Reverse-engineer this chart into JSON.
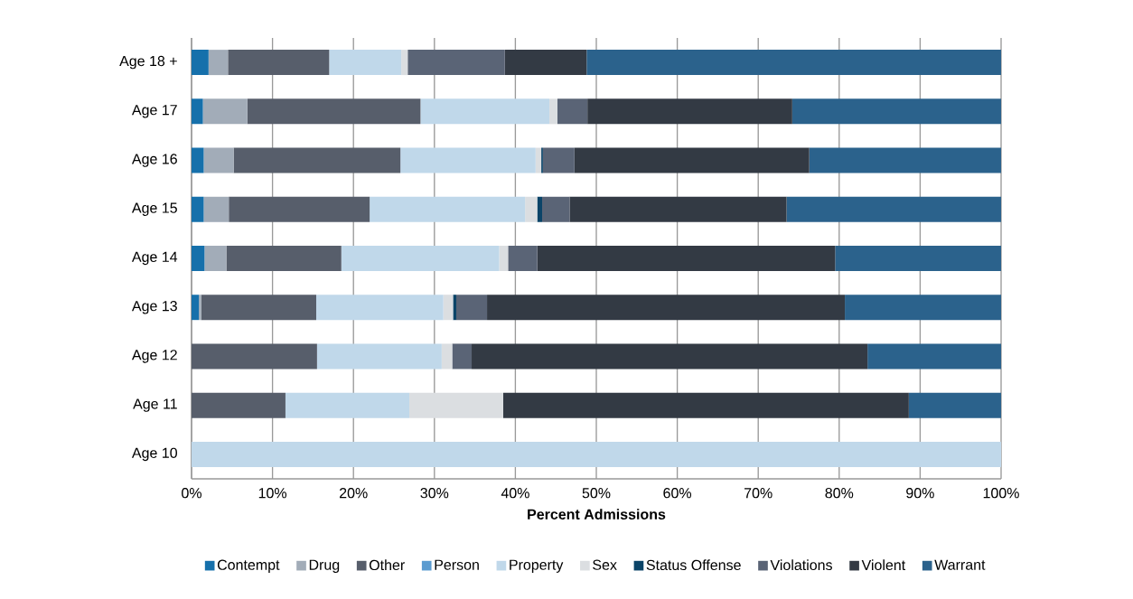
{
  "chart_data": {
    "type": "bar",
    "orientation": "horizontal",
    "stacked": true,
    "xlabel": "Percent Admissions",
    "categories": [
      "Age 18 +",
      "Age 17",
      "Age 16",
      "Age 15",
      "Age 14",
      "Age 13",
      "Age 12",
      "Age 11",
      "Age 10"
    ],
    "series": [
      {
        "name": "Contempt",
        "color": "#1670ab",
        "values": [
          2.1,
          1.4,
          1.5,
          1.5,
          1.6,
          0.9,
          0,
          0,
          0
        ]
      },
      {
        "name": "Drug",
        "color": "#a2acb8",
        "values": [
          2.4,
          5.5,
          3.7,
          3.1,
          2.7,
          0.3,
          0,
          0,
          0
        ]
      },
      {
        "name": "Other",
        "color": "#575e6b",
        "values": [
          12.5,
          21.4,
          20.6,
          17.4,
          14.2,
          14.2,
          15.5,
          11.6,
          0
        ]
      },
      {
        "name": "Person",
        "color": "#5b9bd0",
        "values": [
          0,
          0,
          0,
          0,
          0,
          0,
          0,
          0,
          0
        ]
      },
      {
        "name": "Property",
        "color": "#c0d8ea",
        "values": [
          8.9,
          15.9,
          16.7,
          19.2,
          19.5,
          15.7,
          15.4,
          15.3,
          100
        ]
      },
      {
        "name": "Sex",
        "color": "#dbdee1",
        "values": [
          0.8,
          1.0,
          0.7,
          1.5,
          1.1,
          1.2,
          1.3,
          11.6,
          0
        ]
      },
      {
        "name": "Status Offense",
        "color": "#0b4468",
        "values": [
          0,
          0,
          0.2,
          0.6,
          0,
          0.4,
          0,
          0,
          0
        ]
      },
      {
        "name": "Violations",
        "color": "#5a6476",
        "values": [
          12.0,
          3.7,
          3.9,
          3.4,
          3.6,
          3.8,
          2.4,
          0,
          0
        ]
      },
      {
        "name": "Violent",
        "color": "#333a44",
        "values": [
          10.1,
          25.3,
          29.0,
          26.8,
          36.8,
          44.2,
          48.9,
          50.1,
          0
        ]
      },
      {
        "name": "Warrant",
        "color": "#2b628c",
        "values": [
          51.2,
          25.8,
          23.7,
          26.5,
          20.5,
          19.3,
          16.5,
          11.4,
          0
        ]
      }
    ],
    "xlim": [
      0,
      100
    ],
    "xticks": [
      {
        "value": 0,
        "label": "0%"
      },
      {
        "value": 10,
        "label": "10%"
      },
      {
        "value": 20,
        "label": "20%"
      },
      {
        "value": 30,
        "label": "30%"
      },
      {
        "value": 40,
        "label": "40%"
      },
      {
        "value": 50,
        "label": "50%"
      },
      {
        "value": 60,
        "label": "60%"
      },
      {
        "value": 70,
        "label": "70%"
      },
      {
        "value": 80,
        "label": "80%"
      },
      {
        "value": 90,
        "label": "90%"
      },
      {
        "value": 100,
        "label": "100%"
      }
    ],
    "grid": "x",
    "legend": "bottom"
  }
}
